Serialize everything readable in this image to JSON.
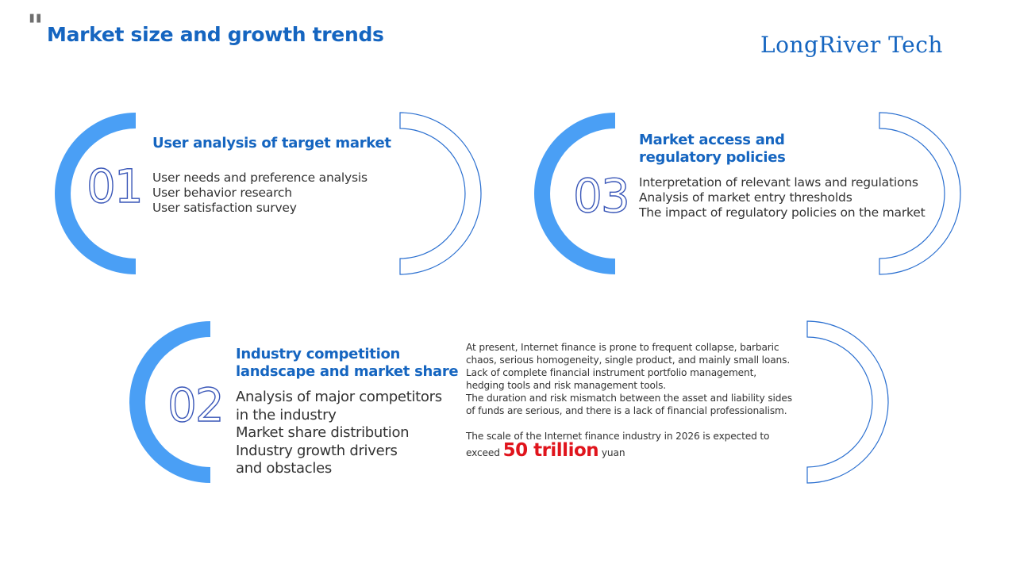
{
  "header": {
    "title": "Market size and growth trends",
    "brand": "LongRiver Tech"
  },
  "sections": [
    {
      "number": "01",
      "heading_lines": [
        "User analysis of target market"
      ],
      "items": [
        "User needs and preference analysis",
        "User behavior research",
        "User satisfaction survey"
      ]
    },
    {
      "number": "02",
      "heading_lines": [
        "Industry competition",
        "landscape and market share"
      ],
      "items": [
        "Analysis of major competitors",
        "in the industry",
        "Market share distribution",
        "Industry growth drivers",
        "and obstacles"
      ]
    },
    {
      "number": "03",
      "heading_lines": [
        "Market access and",
        "regulatory policies"
      ],
      "items": [
        "Interpretation of relevant laws and regulations",
        "Analysis of market entry thresholds",
        "The impact of regulatory policies on the market"
      ]
    }
  ],
  "note": {
    "lines": [
      "At present, Internet finance is prone to frequent collapse, barbaric",
      "chaos, serious homogeneity, single product, and mainly small loans.",
      "Lack of complete financial instrument portfolio management,",
      "hedging tools and risk management tools.",
      "The duration and risk mismatch between the asset and liability sides",
      "of funds are serious, and there is a lack of financial professionalism."
    ],
    "forecast_line": "The scale of the Internet finance industry in 2026 is expected to",
    "forecast_prefix": "exceed",
    "forecast_value": "50 trillion",
    "forecast_suffix": "yuan"
  },
  "colors": {
    "accent_blue": "#1565c0",
    "arc_blue": "#4a9ff5",
    "outline_blue": "#2a6fd0",
    "highlight_red": "#e0141c"
  }
}
